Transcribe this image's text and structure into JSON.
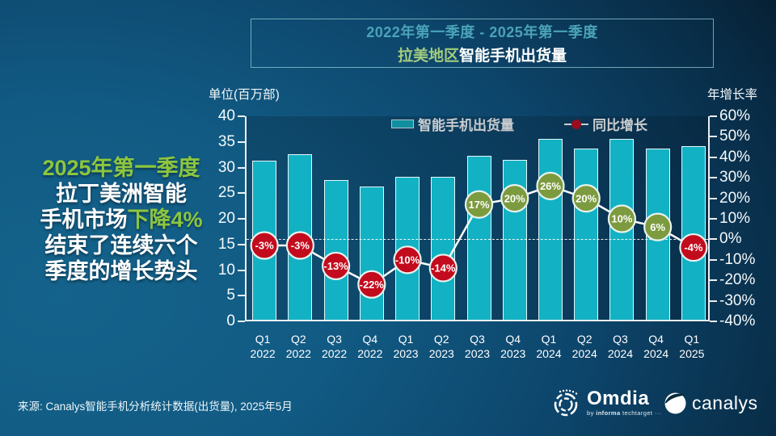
{
  "title_box": {
    "line1": "2022年第一季度 -  2025年第一季度",
    "line2_green": "拉美地区",
    "line2_white": "智能手机出货量"
  },
  "headline": {
    "l1": "2025年第一季度",
    "l2": "拉丁美洲智能",
    "l3a": "手机市场",
    "l3b": "下降4%",
    "l4": "结束了连续六个",
    "l5": "季度的增长势头"
  },
  "axis_units": {
    "left": "单位(百万部)",
    "right": "年增长率"
  },
  "legend": {
    "bar_label": "智能手机出货量",
    "line_label": "同比增长"
  },
  "source": "来源: Canalys智能手机分析统计数据(出货量), 2025年5月",
  "logos": {
    "omdia": "Omdia",
    "omdia_sub_by": "by ",
    "omdia_sub_informa": "informa",
    "omdia_sub_rest": " techtarget ···",
    "canalys": "canalys"
  },
  "chart_data": {
    "type": "bar+line",
    "title": "拉美地区智能手机出货量 2022年第一季度 - 2025年第一季度",
    "categories": [
      "Q1 2022",
      "Q2 2022",
      "Q3 2022",
      "Q4 2022",
      "Q1 2023",
      "Q2 2023",
      "Q3 2023",
      "Q4 2023",
      "Q1 2024",
      "Q2 2024",
      "Q3 2024",
      "Q4 2024",
      "Q1 2025"
    ],
    "series": [
      {
        "name": "智能手机出货量",
        "type": "bar",
        "unit": "百万部",
        "values": [
          31.0,
          32.3,
          27.3,
          26.0,
          27.9,
          27.8,
          31.9,
          31.2,
          35.2,
          33.4,
          35.2,
          33.4,
          33.8
        ]
      },
      {
        "name": "同比增长",
        "type": "line",
        "unit": "%",
        "values": [
          -3,
          -3,
          -13,
          -22,
          -10,
          -14,
          17,
          20,
          26,
          20,
          10,
          6,
          -4
        ],
        "labels": [
          "-3%",
          "-3%",
          "-13%",
          "-22%",
          "-10%",
          "-14%",
          "17%",
          "20%",
          "26%",
          "20%",
          "10%",
          "6%",
          "-4%"
        ]
      }
    ],
    "left_axis": {
      "label": "单位(百万部)",
      "min": 0,
      "max": 40,
      "step": 5
    },
    "right_axis": {
      "label": "年增长率",
      "min": -40,
      "max": 60,
      "step": 10,
      "suffix": "%"
    },
    "zero_line": true,
    "legend_position": "top",
    "colors": {
      "bar": "#12b2c4",
      "bar_border": "#f2fbfc",
      "positive_marker": "#7c9b3e",
      "negative_marker": "#c30b1e",
      "marker_ring": "#e9f2ee",
      "line": "#ffffff",
      "title_teal": "#4aa3b8",
      "highlight_green": "#8dc63f"
    }
  }
}
